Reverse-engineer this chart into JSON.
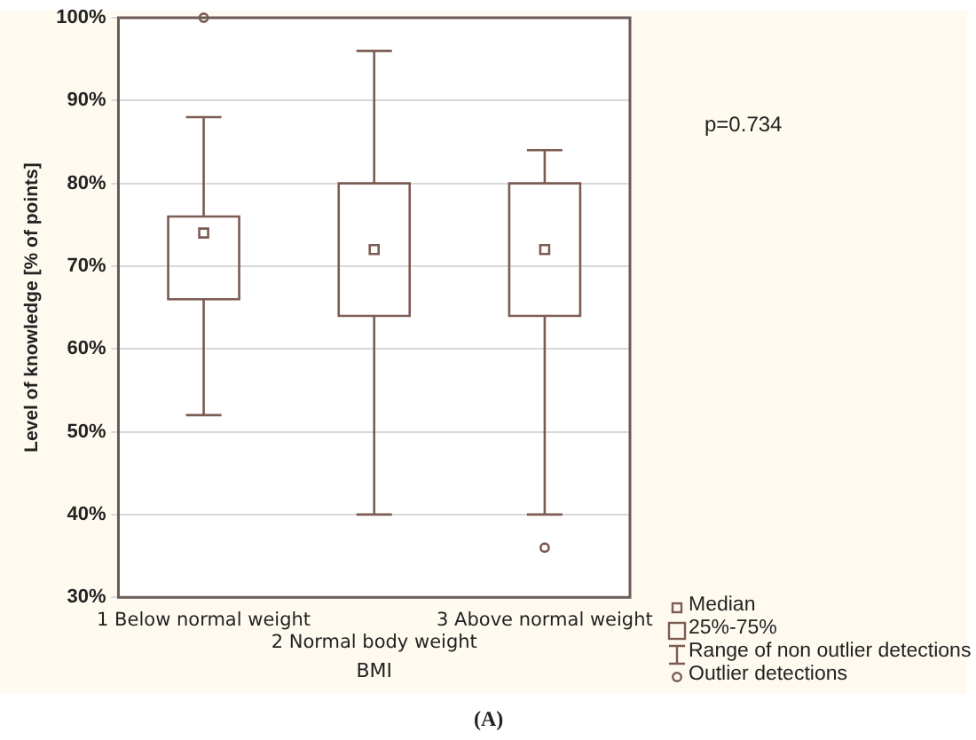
{
  "chart_data": {
    "type": "box",
    "xlabel": "BMI",
    "ylabel": "Level of knowledge [% of points]",
    "categories": [
      "1 Below normal weight",
      "2 Normal body weight",
      "3 Above normal weight"
    ],
    "color": "#7b5b52",
    "boxes": [
      {
        "low": 52,
        "q1": 66,
        "median": 74,
        "q3": 76,
        "high": 88,
        "outliers": [
          100
        ]
      },
      {
        "low": 40,
        "q1": 64,
        "median": 72,
        "q3": 80,
        "high": 96
      },
      {
        "low": 40,
        "q1": 64,
        "median": 72,
        "q3": 80,
        "high": 84,
        "outliers": [
          36
        ]
      }
    ],
    "ylim": [
      30,
      100
    ],
    "yticks": [
      {
        "value": 30,
        "label": "30%"
      },
      {
        "value": 40,
        "label": "40%"
      },
      {
        "value": 50,
        "label": "50%"
      },
      {
        "value": 60,
        "label": "60%"
      },
      {
        "value": 70,
        "label": "70%"
      },
      {
        "value": 80,
        "label": "80%"
      },
      {
        "value": 90,
        "label": "90%"
      },
      {
        "value": 100,
        "label": "100%"
      }
    ],
    "grid": "y",
    "annotations": [
      "p=0.734",
      "Median",
      "25%-75%",
      "Range of non outlier detections",
      "Outlier detections",
      "(A)"
    ]
  }
}
